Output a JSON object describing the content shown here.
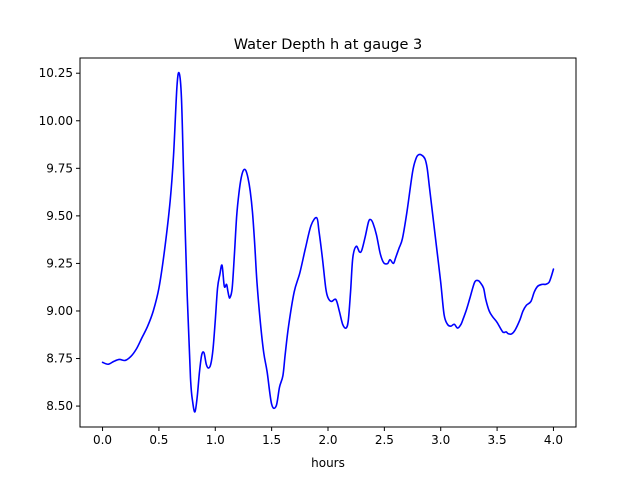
{
  "chart_data": {
    "type": "line",
    "title": "Water Depth h at gauge 3",
    "xlabel": "hours",
    "ylabel": "",
    "xlim": [
      -0.2,
      4.2
    ],
    "ylim": [
      8.39,
      10.33
    ],
    "grid": false,
    "xticks": [
      0.0,
      0.5,
      1.0,
      1.5,
      2.0,
      2.5,
      3.0,
      3.5,
      4.0
    ],
    "xtick_labels": [
      "0.0",
      "0.5",
      "1.0",
      "1.5",
      "2.0",
      "2.5",
      "3.0",
      "3.5",
      "4.0"
    ],
    "yticks": [
      8.5,
      8.75,
      9.0,
      9.25,
      9.5,
      9.75,
      10.0,
      10.25
    ],
    "ytick_labels": [
      "8.50",
      "8.75",
      "9.00",
      "9.25",
      "9.50",
      "9.75",
      "10.00",
      "10.25"
    ],
    "series": [
      {
        "color": "#0000ff",
        "x": [
          0.0,
          0.05,
          0.1,
          0.15,
          0.2,
          0.25,
          0.3,
          0.35,
          0.4,
          0.45,
          0.5,
          0.55,
          0.6,
          0.63,
          0.66,
          0.68,
          0.7,
          0.72,
          0.75,
          0.78,
          0.8,
          0.82,
          0.84,
          0.86,
          0.88,
          0.9,
          0.92,
          0.94,
          0.96,
          0.98,
          1.0,
          1.02,
          1.04,
          1.06,
          1.08,
          1.1,
          1.11,
          1.12,
          1.13,
          1.15,
          1.17,
          1.19,
          1.21,
          1.23,
          1.25,
          1.27,
          1.29,
          1.31,
          1.33,
          1.35,
          1.37,
          1.4,
          1.43,
          1.46,
          1.5,
          1.54,
          1.57,
          1.6,
          1.62,
          1.65,
          1.7,
          1.75,
          1.8,
          1.85,
          1.9,
          1.92,
          1.95,
          1.98,
          2.0,
          2.03,
          2.07,
          2.1,
          2.13,
          2.16,
          2.18,
          2.2,
          2.22,
          2.25,
          2.28,
          2.3,
          2.33,
          2.36,
          2.38,
          2.4,
          2.43,
          2.46,
          2.48,
          2.5,
          2.53,
          2.55,
          2.58,
          2.6,
          2.63,
          2.66,
          2.7,
          2.75,
          2.78,
          2.8,
          2.83,
          2.86,
          2.88,
          2.9,
          2.93,
          2.96,
          3.0,
          3.03,
          3.06,
          3.09,
          3.12,
          3.15,
          3.18,
          3.2,
          3.23,
          3.26,
          3.3,
          3.33,
          3.35,
          3.38,
          3.4,
          3.43,
          3.46,
          3.5,
          3.55,
          3.58,
          3.6,
          3.63,
          3.66,
          3.7,
          3.73,
          3.76,
          3.8,
          3.83,
          3.86,
          3.9,
          3.93,
          3.96,
          3.98,
          4.0
        ],
        "y": [
          8.73,
          8.72,
          8.735,
          8.745,
          8.74,
          8.76,
          8.8,
          8.86,
          8.92,
          9.0,
          9.12,
          9.32,
          9.58,
          9.82,
          10.18,
          10.25,
          10.12,
          9.7,
          9.1,
          8.65,
          8.52,
          8.47,
          8.55,
          8.68,
          8.77,
          8.78,
          8.72,
          8.7,
          8.72,
          8.8,
          8.95,
          9.12,
          9.19,
          9.24,
          9.13,
          9.14,
          9.11,
          9.08,
          9.07,
          9.12,
          9.3,
          9.5,
          9.62,
          9.7,
          9.74,
          9.74,
          9.7,
          9.63,
          9.52,
          9.35,
          9.15,
          8.94,
          8.78,
          8.68,
          8.51,
          8.5,
          8.6,
          8.66,
          8.77,
          8.92,
          9.1,
          9.2,
          9.33,
          9.45,
          9.49,
          9.42,
          9.28,
          9.12,
          9.07,
          9.05,
          9.06,
          9.0,
          8.93,
          8.91,
          8.95,
          9.1,
          9.28,
          9.34,
          9.31,
          9.32,
          9.39,
          9.47,
          9.48,
          9.46,
          9.4,
          9.31,
          9.27,
          9.25,
          9.25,
          9.27,
          9.25,
          9.28,
          9.33,
          9.38,
          9.52,
          9.73,
          9.8,
          9.82,
          9.82,
          9.8,
          9.75,
          9.65,
          9.5,
          9.35,
          9.15,
          8.98,
          8.93,
          8.92,
          8.93,
          8.91,
          8.93,
          8.96,
          9.01,
          9.07,
          9.15,
          9.16,
          9.15,
          9.12,
          9.06,
          9.0,
          8.97,
          8.94,
          8.89,
          8.89,
          8.88,
          8.88,
          8.9,
          8.95,
          9.0,
          9.03,
          9.05,
          9.1,
          9.13,
          9.14,
          9.14,
          9.15,
          9.18,
          9.22
        ]
      }
    ]
  }
}
